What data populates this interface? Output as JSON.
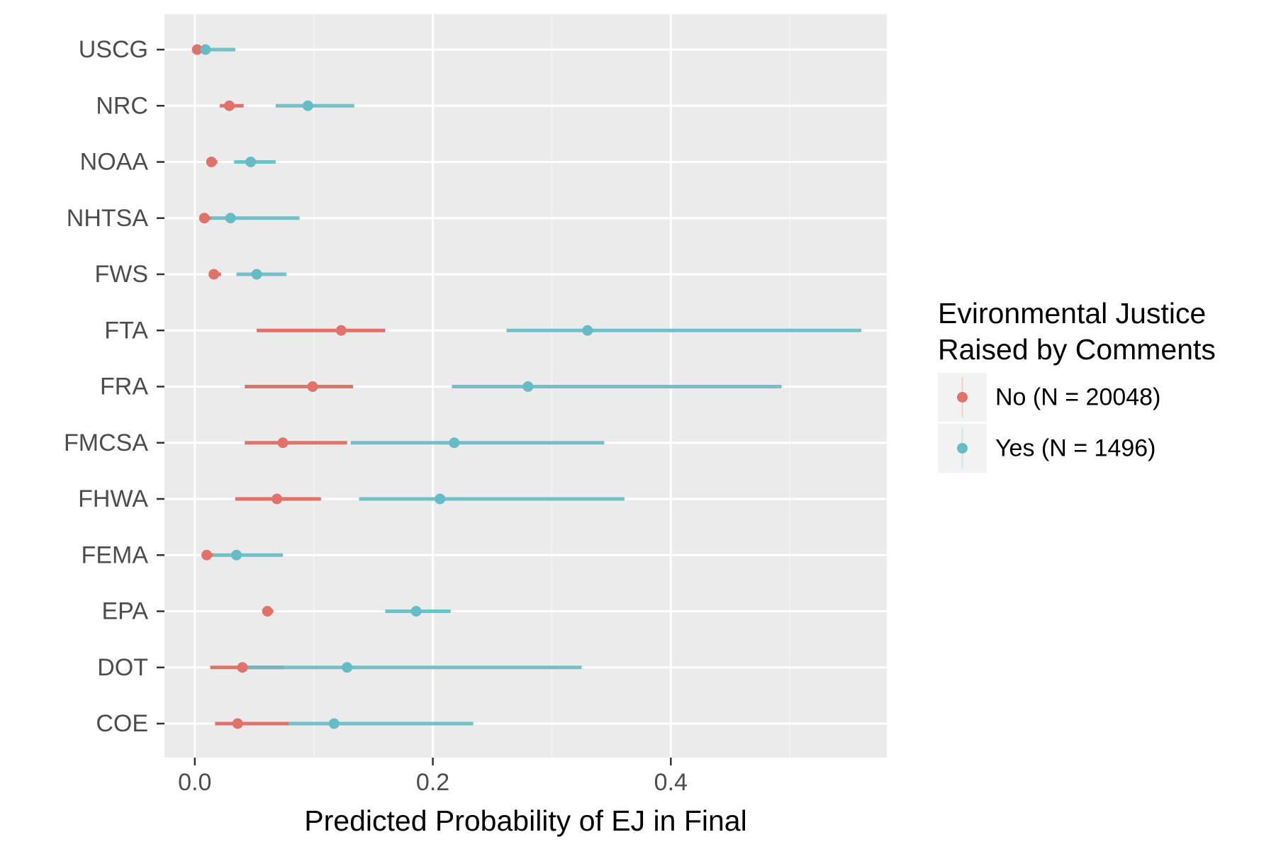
{
  "chart_data": {
    "type": "dot-interval",
    "title": "",
    "xlabel": "Predicted Probability of EJ in Final",
    "ylabel": "",
    "xlim": [
      -0.0255,
      0.5815
    ],
    "x_ticks": [
      0.0,
      0.2,
      0.4
    ],
    "x_minor_ticks": [
      0.1,
      0.3,
      0.5
    ],
    "grid": true,
    "categories": [
      "USCG",
      "NRC",
      "NOAA",
      "NHTSA",
      "FWS",
      "FTA",
      "FRA",
      "FMCSA",
      "FHWA",
      "FEMA",
      "EPA",
      "DOT",
      "COE"
    ],
    "legend": {
      "title_lines": [
        "Evironmental Justice",
        "Raised by Comments"
      ],
      "position": "right"
    },
    "series": [
      {
        "name": "No (N = 20048)",
        "color": "#e0726a",
        "estimates": [
          0.002,
          0.029,
          0.014,
          0.008,
          0.016,
          0.123,
          0.099,
          0.074,
          0.069,
          0.01,
          0.061,
          0.04,
          0.036
        ],
        "lower": [
          0.0,
          0.021,
          0.011,
          0.004,
          0.012,
          0.052,
          0.042,
          0.042,
          0.034,
          0.006,
          0.057,
          0.013,
          0.017
        ],
        "upper": [
          0.004,
          0.041,
          0.019,
          0.014,
          0.022,
          0.16,
          0.133,
          0.128,
          0.106,
          0.016,
          0.066,
          0.075,
          0.079
        ]
      },
      {
        "name": "Yes (N = 1496)",
        "color": "#66bcc4",
        "estimates": [
          0.009,
          0.095,
          0.047,
          0.03,
          0.052,
          0.33,
          0.28,
          0.218,
          0.206,
          0.035,
          0.186,
          0.128,
          0.117
        ],
        "lower": [
          0.002,
          0.068,
          0.033,
          0.013,
          0.035,
          0.262,
          0.216,
          0.131,
          0.138,
          0.015,
          0.16,
          0.04,
          0.079
        ],
        "upper": [
          0.034,
          0.134,
          0.068,
          0.088,
          0.077,
          0.56,
          0.493,
          0.344,
          0.361,
          0.074,
          0.215,
          0.325,
          0.234
        ]
      }
    ]
  }
}
